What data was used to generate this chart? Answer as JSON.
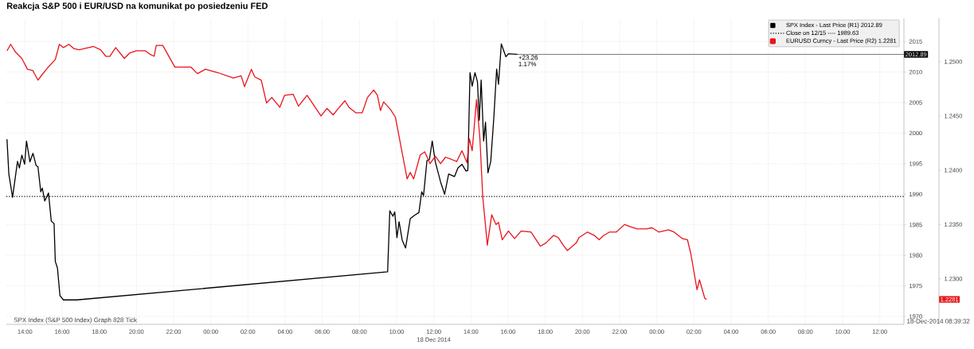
{
  "chart_data": {
    "type": "line",
    "title": "Reakcja S&P 500 i EUR/USD na komunikat po posiedzeniu FED",
    "series": [
      {
        "name": "SPX Index - Last Price (R1) 2012.89",
        "color": "#000000",
        "x": [
          "2014-12-17T13:02",
          "2014-12-17T13:08",
          "2014-12-17T13:20",
          "2014-12-17T13:36",
          "2014-12-17T13:42",
          "2014-12-17T13:50",
          "2014-12-17T13:59",
          "2014-12-17T14:05",
          "2014-12-17T14:16",
          "2014-12-17T14:26",
          "2014-12-17T14:36",
          "2014-12-17T14:42",
          "2014-12-17T14:51",
          "2014-12-17T14:56",
          "2014-12-17T15:04",
          "2014-12-17T15:16",
          "2014-12-17T15:25",
          "2014-12-17T15:34",
          "2014-12-17T15:38",
          "2014-12-17T15:45",
          "2014-12-17T15:53",
          "2014-12-17T16:04",
          "2014-12-17T16:47",
          "2014-12-18T09:31",
          "2014-12-18T09:38",
          "2014-12-18T09:48",
          "2014-12-18T09:54",
          "2014-12-18T10:01",
          "2014-12-18T10:08",
          "2014-12-18T10:18",
          "2014-12-18T10:29",
          "2014-12-18T10:44",
          "2014-12-18T10:59",
          "2014-12-18T11:12",
          "2014-12-18T11:21",
          "2014-12-18T11:27",
          "2014-12-18T11:38",
          "2014-12-18T11:46",
          "2014-12-18T11:55",
          "2014-12-18T12:05",
          "2014-12-18T12:22",
          "2014-12-18T12:35",
          "2014-12-18T12:48",
          "2014-12-18T13:07",
          "2014-12-18T13:18",
          "2014-12-18T13:31",
          "2014-12-18T13:44",
          "2014-12-18T13:50",
          "2014-12-18T13:57",
          "2014-12-18T14:04",
          "2014-12-18T14:13",
          "2014-12-18T14:21",
          "2014-12-18T14:27",
          "2014-12-18T14:33",
          "2014-12-18T14:41",
          "2014-12-18T14:47",
          "2014-12-18T14:55",
          "2014-12-18T15:04",
          "2014-12-18T15:14",
          "2014-12-18T15:23",
          "2014-12-18T15:29",
          "2014-12-18T15:38",
          "2014-12-18T15:53",
          "2014-12-18T16:01",
          "2014-12-18T16:30"
        ],
        "values": [
          1999.0,
          1993.3,
          1989.5,
          1995.4,
          1994.3,
          1996.4,
          1994.9,
          1998.7,
          1995.3,
          1996.7,
          1994.7,
          1994.5,
          1990.4,
          1991.0,
          1988.9,
          1990.2,
          1985.6,
          1985.2,
          1979.0,
          1977.9,
          1973.4,
          1972.7,
          1972.7,
          1977.3,
          1987.3,
          1986.4,
          1987.1,
          1982.9,
          1985.5,
          1982.5,
          1981.2,
          1986.0,
          1986.6,
          1987.0,
          1990.4,
          1989.8,
          1995.5,
          1995.7,
          1998.7,
          1995.3,
          1992.0,
          1990.0,
          1993.3,
          1992.9,
          1994.3,
          1994.9,
          1993.8,
          1993.9,
          2009.9,
          2007.7,
          2009.9,
          2008.4,
          2002.1,
          2008.7,
          1998.7,
          2001.8,
          1993.5,
          1995.4,
          2002.6,
          2010.5,
          2008.0,
          2014.6,
          2012.5,
          2013.0,
          2012.89
        ]
      },
      {
        "name": "EURUSD Curncy - Last Price (R2) 1.2281",
        "color": "#e8141b",
        "axis": "y2",
        "x": [
          "2014-12-17T13:02",
          "2014-12-17T13:14",
          "2014-12-17T13:29",
          "2014-12-17T13:50",
          "2014-12-17T14:08",
          "2014-12-17T14:25",
          "2014-12-17T14:42",
          "2014-12-17T14:55",
          "2014-12-17T15:12",
          "2014-12-17T15:38",
          "2014-12-17T15:51",
          "2014-12-17T16:04",
          "2014-12-17T16:22",
          "2014-12-17T16:38",
          "2014-12-17T16:55",
          "2014-12-17T17:42",
          "2014-12-17T18:04",
          "2014-12-17T18:21",
          "2014-12-17T18:34",
          "2014-12-17T18:53",
          "2014-12-17T19:21",
          "2014-12-17T19:38",
          "2014-12-17T20:00",
          "2014-12-17T20:29",
          "2014-12-17T20:43",
          "2014-12-17T20:57",
          "2014-12-17T21:04",
          "2014-12-17T21:25",
          "2014-12-17T22:04",
          "2014-12-17T22:22",
          "2014-12-17T22:56",
          "2014-12-17T23:17",
          "2014-12-17T23:43",
          "2014-12-18T00:22",
          "2014-12-18T01:13",
          "2014-12-18T01:38",
          "2014-12-18T01:49",
          "2014-12-18T02:11",
          "2014-12-18T02:22",
          "2014-12-18T02:43",
          "2014-12-18T03:00",
          "2014-12-18T03:17",
          "2014-12-18T03:43",
          "2014-12-18T03:58",
          "2014-12-18T04:26",
          "2014-12-18T04:43",
          "2014-12-18T05:11",
          "2014-12-18T05:56",
          "2014-12-18T06:15",
          "2014-12-18T06:35",
          "2014-12-18T06:52",
          "2014-12-18T07:13",
          "2014-12-18T07:26",
          "2014-12-18T07:48",
          "2014-12-18T08:09",
          "2014-12-18T08:26",
          "2014-12-18T08:46",
          "2014-12-18T08:58",
          "2014-12-18T09:08",
          "2014-12-18T09:18",
          "2014-12-18T09:40",
          "2014-12-18T09:56",
          "2014-12-18T10:14",
          "2014-12-18T10:34",
          "2014-12-18T10:44",
          "2014-12-18T10:55",
          "2014-12-18T11:16",
          "2014-12-18T11:31",
          "2014-12-18T11:48",
          "2014-12-18T12:05",
          "2014-12-18T12:22",
          "2014-12-18T12:38",
          "2014-12-18T12:57",
          "2014-12-18T13:14",
          "2014-12-18T13:31",
          "2014-12-18T13:47",
          "2014-12-18T13:55",
          "2014-12-18T14:04",
          "2014-12-18T14:18",
          "2014-12-18T14:29",
          "2014-12-18T14:38",
          "2014-12-18T14:53",
          "2014-12-18T15:07",
          "2014-12-18T15:21",
          "2014-12-18T15:29",
          "2014-12-18T15:41",
          "2014-12-18T16:01",
          "2014-12-18T16:21",
          "2014-12-18T16:42",
          "2014-12-18T17:14",
          "2014-12-18T17:44",
          "2014-12-18T18:02",
          "2014-12-18T18:27",
          "2014-12-18T18:42",
          "2014-12-18T18:58",
          "2014-12-18T19:11",
          "2014-12-18T19:40",
          "2014-12-18T19:49",
          "2014-12-18T20:16",
          "2014-12-18T20:38",
          "2014-12-18T20:54",
          "2014-12-18T21:09",
          "2014-12-18T21:27",
          "2014-12-18T21:49",
          "2014-12-18T22:16",
          "2014-12-18T22:34",
          "2014-12-18T22:56",
          "2014-12-18T23:27",
          "2014-12-18T23:45",
          "2014-12-19T00:07",
          "2014-12-19T00:38",
          "2014-12-19T00:56",
          "2014-12-19T01:23",
          "2014-12-19T01:39",
          "2014-12-19T01:50",
          "2014-12-19T02:10",
          "2014-12-19T02:18",
          "2014-12-19T02:35",
          "2014-12-19T02:41"
        ],
        "values": [
          1.251,
          1.2516,
          1.2509,
          1.2503,
          1.2493,
          1.2492,
          1.2483,
          1.2488,
          1.2494,
          1.2502,
          1.2516,
          1.2513,
          1.2516,
          1.2512,
          1.2511,
          1.2514,
          1.2511,
          1.2505,
          1.2505,
          1.2513,
          1.2503,
          1.2508,
          1.251,
          1.251,
          1.2507,
          1.2505,
          1.2515,
          1.2515,
          1.2495,
          1.2495,
          1.2495,
          1.2489,
          1.2493,
          1.249,
          1.2485,
          1.2487,
          1.2477,
          1.2493,
          1.2486,
          1.2483,
          1.2462,
          1.2467,
          1.2458,
          1.2469,
          1.247,
          1.2459,
          1.2469,
          1.245,
          1.2457,
          1.2451,
          1.2457,
          1.2464,
          1.2458,
          1.2453,
          1.2453,
          1.2467,
          1.2474,
          1.2469,
          1.2455,
          1.2463,
          1.2456,
          1.2449,
          1.2422,
          1.2392,
          1.2398,
          1.2392,
          1.2414,
          1.2417,
          1.2406,
          1.2413,
          1.2406,
          1.2412,
          1.241,
          1.2408,
          1.2418,
          1.2407,
          1.2429,
          1.2418,
          1.2465,
          1.2429,
          1.2376,
          1.2331,
          1.2359,
          1.235,
          1.2352,
          1.2336,
          1.2344,
          1.2337,
          1.2344,
          1.2343,
          1.233,
          1.2333,
          1.234,
          1.2338,
          1.2331,
          1.2326,
          1.2333,
          1.2338,
          1.2343,
          1.234,
          1.2336,
          1.234,
          1.2343,
          1.2343,
          1.235,
          1.2348,
          1.2346,
          1.2346,
          1.2347,
          1.2343,
          1.2345,
          1.2343,
          1.2337,
          1.2336,
          1.2323,
          1.229,
          1.2299,
          1.2282,
          1.2281
        ]
      }
    ],
    "xlim": [
      "2014-12-17T13:00",
      "2014-12-19T13:18"
    ],
    "xticks": [
      {
        "value": "2014-12-17T14:00",
        "label": "14:00"
      },
      {
        "value": "2014-12-17T16:00",
        "label": "16:00"
      },
      {
        "value": "2014-12-17T18:00",
        "label": "18:00"
      },
      {
        "value": "2014-12-17T20:00",
        "label": "20:00"
      },
      {
        "value": "2014-12-17T22:00",
        "label": "22:00"
      },
      {
        "value": "2014-12-18T00:00",
        "label": "00:00"
      },
      {
        "value": "2014-12-18T02:00",
        "label": "02:00"
      },
      {
        "value": "2014-12-18T04:00",
        "label": "04:00"
      },
      {
        "value": "2014-12-18T06:00",
        "label": "06:00"
      },
      {
        "value": "2014-12-18T08:00",
        "label": "08:00"
      },
      {
        "value": "2014-12-18T10:00",
        "label": "10:00"
      },
      {
        "value": "2014-12-18T12:00",
        "label": "12:00"
      },
      {
        "value": "2014-12-18T14:00",
        "label": "14:00"
      },
      {
        "value": "2014-12-18T16:00",
        "label": "16:00"
      },
      {
        "value": "2014-12-18T18:00",
        "label": "18:00"
      },
      {
        "value": "2014-12-18T20:00",
        "label": "20:00"
      },
      {
        "value": "2014-12-18T22:00",
        "label": "22:00"
      },
      {
        "value": "2014-12-19T00:00",
        "label": "00:00"
      },
      {
        "value": "2014-12-19T02:00",
        "label": "02:00"
      },
      {
        "value": "2014-12-19T04:00",
        "label": "04:00"
      },
      {
        "value": "2014-12-19T06:00",
        "label": "06:00"
      },
      {
        "value": "2014-12-19T08:00",
        "label": "08:00"
      },
      {
        "value": "2014-12-19T10:00",
        "label": "10:00"
      },
      {
        "value": "2014-12-19T12:00",
        "label": "12:00"
      }
    ],
    "ylim": [
      1968.7,
      2018.8
    ],
    "yticks": [
      1970,
      1975,
      1980,
      1985,
      1990,
      1995,
      2000,
      2005,
      2010,
      2015
    ],
    "y2lim": [
      1.2258,
      1.254
    ],
    "y2ticks": [
      {
        "value": 1.23,
        "label": "1.2300"
      },
      {
        "value": 1.235,
        "label": "1.2350"
      },
      {
        "value": 1.24,
        "label": "1.2400"
      },
      {
        "value": 1.245,
        "label": "1.2450"
      },
      {
        "value": 1.25,
        "label": "1.2500"
      }
    ],
    "ref_lines": [
      {
        "axis": "y",
        "value": 1989.63,
        "label": "Close on 12/15 ---- 1989.63",
        "color": "#000000",
        "line_style": "dotted"
      },
      {
        "axis": "y",
        "value": 2012.89,
        "label": "2012.89",
        "color": "#555555",
        "line_style": "solid"
      }
    ],
    "annotations": [
      {
        "text": "+23.26",
        "x": "2014-12-18T16:30",
        "y": 2012.89
      },
      "1.17%",
      "18 Dec 2014",
      "SPX Index (S&P 500 Index) Graph 828  Tick",
      "18-Dec-2014 08:39:32",
      "1.2281"
    ],
    "grid": true,
    "legend": "top right",
    "marker": "none",
    "line_style": "solid"
  }
}
